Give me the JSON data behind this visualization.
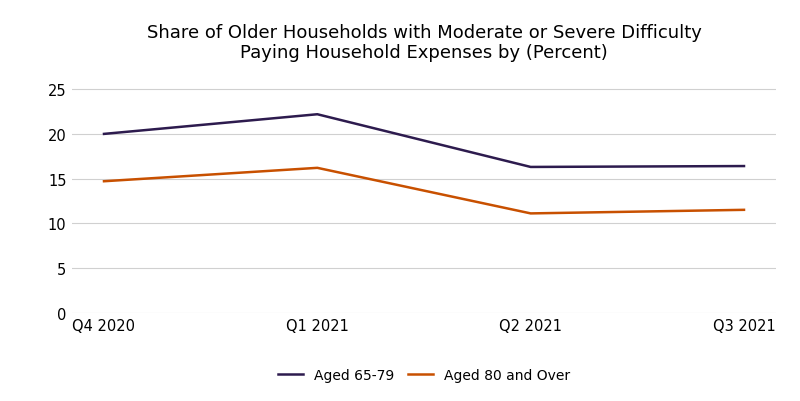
{
  "title": "Share of Older Households with Moderate or Severe Difficulty\nPaying Household Expenses by (Percent)",
  "categories": [
    "Q4 2020",
    "Q1 2021",
    "Q2 2021",
    "Q3 2021"
  ],
  "series": [
    {
      "label": "Aged 65-79",
      "values": [
        20.0,
        22.2,
        16.3,
        16.4
      ],
      "color": "#2d1b4e",
      "linewidth": 1.8
    },
    {
      "label": "Aged 80 and Over",
      "values": [
        14.7,
        16.2,
        11.1,
        11.5
      ],
      "color": "#c85000",
      "linewidth": 1.8
    }
  ],
  "ylim": [
    0,
    27
  ],
  "yticks": [
    0,
    5,
    10,
    15,
    20,
    25
  ],
  "background_color": "#ffffff",
  "grid_color": "#d0d0d0",
  "title_fontsize": 13,
  "legend_fontsize": 10,
  "tick_fontsize": 10.5
}
